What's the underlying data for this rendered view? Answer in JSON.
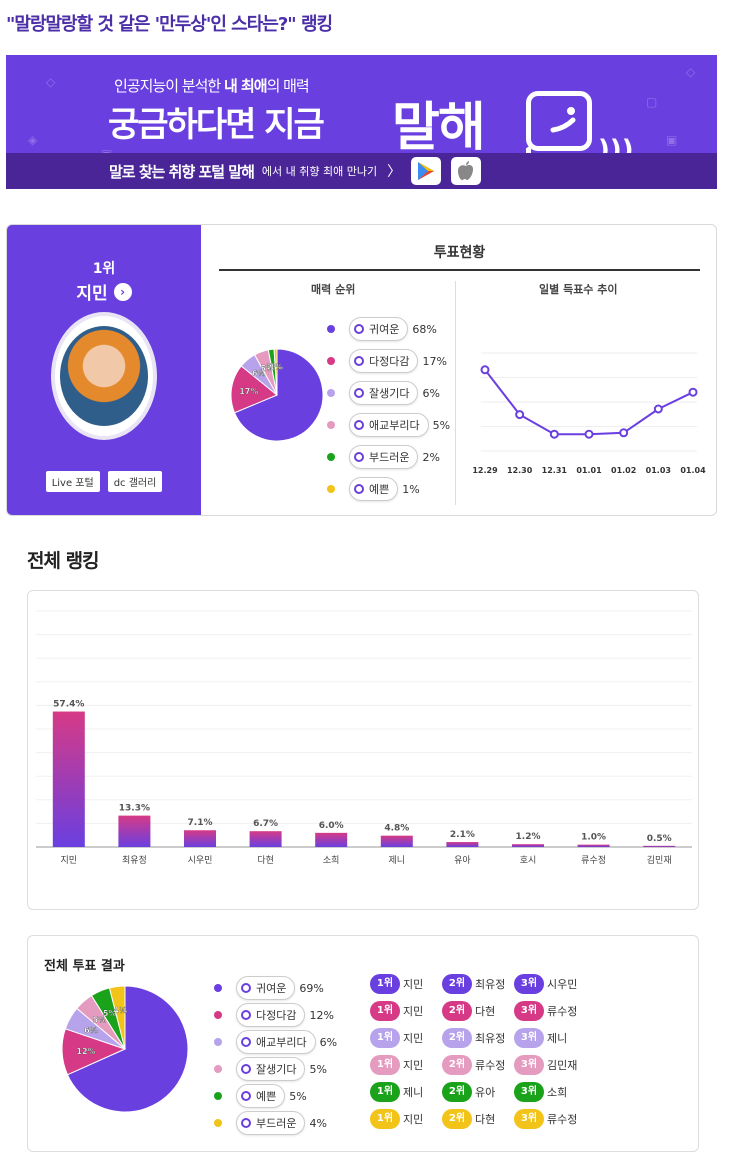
{
  "page": {
    "title": "\"말랑말랑할 것 같은 '만두상'인 스타는?\" 랭킹"
  },
  "banner": {
    "tag_prefix": "인공지능이 분석한 ",
    "tag_bold": "내 최애",
    "tag_suffix": "의 매력",
    "headline": "궁금하다면 지금",
    "brand": "말해",
    "bottom_strong": "말로 찾는 취향 포털 말해",
    "bottom_small": "에서 내 취향 최애 만나기",
    "arrow": "〉",
    "colors": {
      "bg": "#6a3fe0",
      "bottom": "#4a2598"
    }
  },
  "vote": {
    "rank": "1위",
    "name": "지민",
    "links": [
      "Live 포털",
      "dc 갤러리"
    ],
    "title": "투표현황",
    "charm_title": "매력 순위",
    "daily_title": "일별 득표수 추이"
  },
  "ranking_title": "전체 랭킹",
  "result_title": "전체 투표 결과",
  "rank_table": [
    {
      "color": "#6a3fe0",
      "items": [
        {
          "rank": "1위",
          "name": "지민"
        },
        {
          "rank": "2위",
          "name": "최유정"
        },
        {
          "rank": "3위",
          "name": "시우민"
        }
      ]
    },
    {
      "color": "#d63a86",
      "items": [
        {
          "rank": "1위",
          "name": "지민"
        },
        {
          "rank": "2위",
          "name": "다현"
        },
        {
          "rank": "3위",
          "name": "류수정"
        }
      ]
    },
    {
      "color": "#b7a2ec",
      "items": [
        {
          "rank": "1위",
          "name": "지민"
        },
        {
          "rank": "2위",
          "name": "최유정"
        },
        {
          "rank": "3위",
          "name": "제니"
        }
      ]
    },
    {
      "color": "#e59ac0",
      "items": [
        {
          "rank": "1위",
          "name": "지민"
        },
        {
          "rank": "2위",
          "name": "류수정"
        },
        {
          "rank": "3위",
          "name": "김민재"
        }
      ]
    },
    {
      "color": "#1aa31a",
      "items": [
        {
          "rank": "1위",
          "name": "제니"
        },
        {
          "rank": "2위",
          "name": "유아"
        },
        {
          "rank": "3위",
          "name": "소희"
        }
      ]
    },
    {
      "color": "#f2c318",
      "items": [
        {
          "rank": "1위",
          "name": "지민"
        },
        {
          "rank": "2위",
          "name": "다현"
        },
        {
          "rank": "3위",
          "name": "류수정"
        }
      ]
    }
  ],
  "chart_data": [
    {
      "type": "pie",
      "title": "매력 순위",
      "categories": [
        "귀여운",
        "다정다감",
        "잘생기다",
        "애교부리다",
        "부드러운",
        "예쁜"
      ],
      "values": [
        68,
        17,
        6,
        5,
        2,
        1
      ],
      "colors": [
        "#6a3fe0",
        "#d63a86",
        "#b7a2ec",
        "#e59ac0",
        "#1aa31a",
        "#f2c318"
      ],
      "labels": [
        "",
        "17%",
        "6%",
        "5%",
        "2%",
        "1%"
      ]
    },
    {
      "type": "line",
      "title": "일별 득표수 추이",
      "categories": [
        "12.29",
        "12.30",
        "12.31",
        "01.01",
        "01.02",
        "01.03",
        "01.04"
      ],
      "values": [
        88,
        56,
        42,
        42,
        43,
        60,
        72
      ],
      "ylim": [
        30,
        100
      ],
      "color": "#6a3fe0",
      "grid": true
    },
    {
      "type": "bar",
      "title": "전체 랭킹",
      "categories": [
        "지민",
        "최유정",
        "시우민",
        "다현",
        "소희",
        "제니",
        "유아",
        "호시",
        "류수정",
        "김민재"
      ],
      "values": [
        57.4,
        13.3,
        7.1,
        6.7,
        6.0,
        4.8,
        2.1,
        1.2,
        1.0,
        0.5
      ],
      "labels": [
        "57.4%",
        "13.3%",
        "7.1%",
        "6.7%",
        "6.0%",
        "4.8%",
        "2.1%",
        "1.2%",
        "1.0%",
        "0.5%"
      ],
      "ylim": [
        0,
        100
      ],
      "colors": {
        "top": "#d63a86",
        "bottom": "#6a3fe0"
      }
    },
    {
      "type": "pie",
      "title": "전체 투표 결과",
      "categories": [
        "귀여운",
        "다정다감",
        "애교부리다",
        "잘생기다",
        "예쁜",
        "부드러운"
      ],
      "values": [
        69,
        12,
        6,
        5,
        5,
        4
      ],
      "colors": [
        "#6a3fe0",
        "#d63a86",
        "#b7a2ec",
        "#e59ac0",
        "#1aa31a",
        "#f2c318"
      ],
      "labels": [
        "",
        "12%",
        "6%",
        "5%",
        "5%",
        "4%"
      ]
    }
  ]
}
